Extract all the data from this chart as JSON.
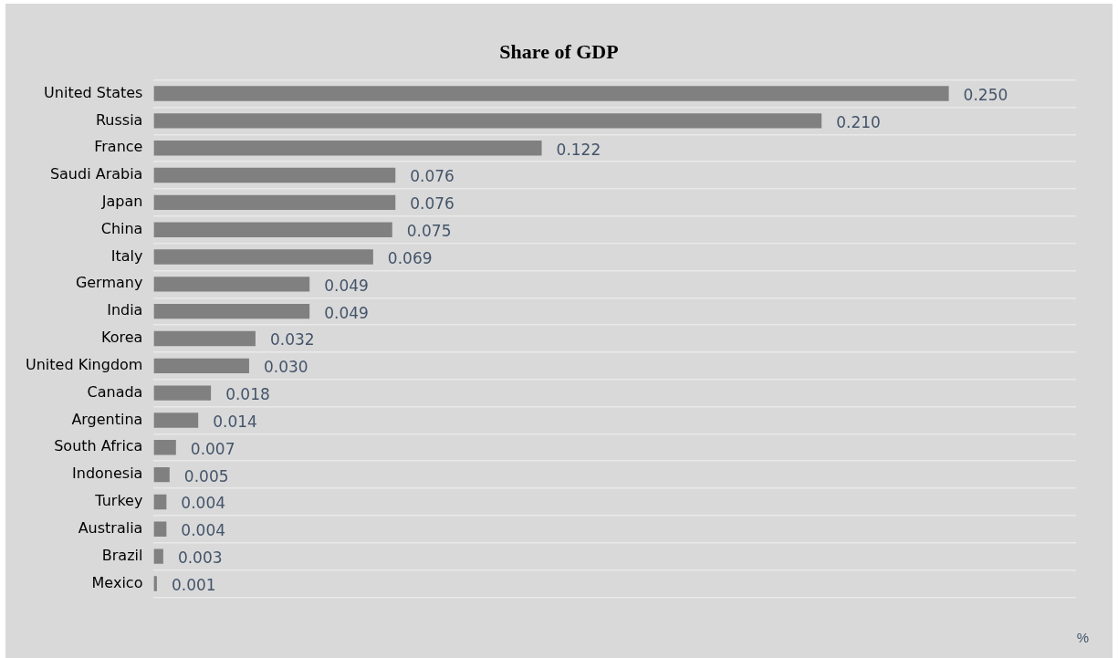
{
  "chart_data": {
    "type": "bar",
    "orientation": "horizontal",
    "title": "Share of GDP",
    "categories": [
      "United States",
      "Russia",
      "France",
      "Saudi Arabia",
      "Japan",
      "China",
      "Italy",
      "Germany",
      "India",
      "Korea",
      "United Kingdom",
      "Canada",
      "Argentina",
      "South Africa",
      "Indonesia",
      "Turkey",
      "Australia",
      "Brazil",
      "Mexico"
    ],
    "values": [
      0.25,
      0.21,
      0.122,
      0.076,
      0.076,
      0.075,
      0.069,
      0.049,
      0.049,
      0.032,
      0.03,
      0.018,
      0.014,
      0.007,
      0.005,
      0.004,
      0.004,
      0.003,
      0.001
    ],
    "value_labels": [
      "0.250",
      "0.210",
      "0.122",
      "0.076",
      "0.076",
      "0.075",
      "0.069",
      "0.049",
      "0.049",
      "0.032",
      "0.030",
      "0.018",
      "0.014",
      "0.007",
      "0.005",
      "0.004",
      "0.004",
      "0.003",
      "0.001"
    ],
    "color": "#808080",
    "xlim": [
      0,
      0.29
    ],
    "grid": "y",
    "tick_labels": "y",
    "annotations": [
      "%"
    ]
  }
}
